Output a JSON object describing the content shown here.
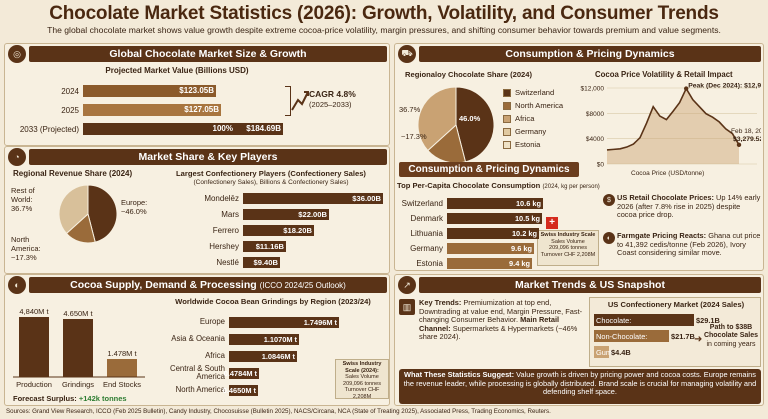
{
  "title": "Chocolate Market Statistics (2026): Growth, Volatility, and Consumer Trends",
  "subtitle": "The global chocolate market shows value growth despite extreme cocoa-price volatility, margin pressures, and shifting consumer behavior towards premium and value segments.",
  "sections": {
    "market_size": "Global Chocolate Market Size & Growth",
    "consumption_pricing": "Consumption & Pricing Dynamics",
    "consumption_pricing_2": "Consumption & Pricing Dynamics",
    "share_players": "Market Share & Key Players",
    "cocoa_supply": "Cocoa Supply, Demand & Processing",
    "cocoa_supply_sub": "(ICCO 2024/25 Outlook)",
    "trends": "Market Trends & US Snapshot"
  },
  "market_value": {
    "title": "Projected Market Value (Billions USD)",
    "cagr": "CAGR 4.8%",
    "cagr_range": "(2025–2033)",
    "final_pct": "100%"
  },
  "regional_share_title": "Regionaloy Chocolate Share (2024)",
  "regional_share_labels": {
    "big": "46.0%",
    "a": "36.7%",
    "b": "~17.3%"
  },
  "revenue_share": {
    "title": "Regional Revenue Share (2024)",
    "row": "Rest of World:",
    "row_val": "36.7%",
    "europe": "Europe:",
    "europe_val": "~46.0%",
    "na": "North America:",
    "na_val": "~17.3%"
  },
  "players": {
    "title": "Largest Confectionery Players (Confectionery Sales)",
    "subtitle": "(Confectionery Sales), Billions & Confectionery Sales)"
  },
  "price_chart": {
    "title": "Cocoa Price Volatility & Retail Impact",
    "peak": "Peak (Dec 2024): $12,906",
    "feb": "Feb 18, 2026:",
    "feb_val": "$3,279.52",
    "xlabel": "Cocoa Price (USD/tonne)"
  },
  "percap": {
    "title": "Top Per-Capita Chocolate Consumption",
    "title_unit": "(2024, kg per person)"
  },
  "swiss_note": [
    "Swiss Industry Scale",
    "Sales Volume",
    "209,096 tonnes",
    "Turnover CHF 2,208M"
  ],
  "swiss_note2": [
    "Swiss Industry",
    "Scale (2024):",
    "Sales Volume",
    "209,096 tonnes",
    "Turnover CHF 2,208M"
  ],
  "retail": {
    "head": "US Retail Chocolate Prices:",
    "body": "Up 14% early 2026 (after 7.8% rise in 2025) despite cocoa price drop.",
    "head2": "Farmgate Pricing Reacts:",
    "body2": "Ghana cut price to 41,392 cedis/tonne (Feb 2026), Ivory Coast considering similar move."
  },
  "supply": {
    "surplus_label": "Forecast Surplus:",
    "surplus_val": "+142k tonnes"
  },
  "grind": {
    "title": "Worldwide Cocoa Bean Grindings by Region (2023/24)"
  },
  "trends": {
    "head": "Key Trends:",
    "body": "Premiumization at top end, Downtrading at value end, Margin Pressure, Fast-changing Consumer Behavior.",
    "head2": "Main Retail Channel:",
    "body2": "Supermarkets & Hypermarkets (~46% share 2024)."
  },
  "us": {
    "title": "US Confectionery Market (2024 Sales)",
    "target": "Path to $38B",
    "target2": "Chocolate Sales",
    "target3": "in coming years"
  },
  "suggest": {
    "head": "What These Statistics Suggest:",
    "body": "Value growth is driven by pricing power and cocoa costs. Europe remains the revenue leader, while processing is globally distributed. Brand scale is crucial for managing volatility and defending shelf space."
  },
  "sources": "Sources: Grand View Research, ICCO (Feb 2025 Bulletin), Candy Industry, Chocosuisse (Bulletin 2025), NACS/Circana, NCA (State of Treating 2025), Associated Press, Trading Economics, Reuters.",
  "colors": {
    "dark": "#5a3317",
    "mid": "#9a6b3a",
    "light": "#c9a273",
    "cream": "#f3ead8"
  },
  "chart_data": [
    {
      "type": "bar",
      "title": "Projected Market Value (Billions USD)",
      "categories": [
        "2024",
        "2025",
        "2033 (Projected)"
      ],
      "values": [
        123.05,
        127.05,
        184.69
      ],
      "labels": [
        "$123.05B",
        "$127.05B",
        "$184.69B"
      ]
    },
    {
      "type": "pie",
      "title": "Regionaloy Chocolate Share (2024)",
      "categories": [
        "Switzerland",
        "North America",
        "Africa",
        "Germany",
        "Estonia"
      ],
      "values": [
        46.0,
        17.3,
        36.7,
        0,
        0
      ]
    },
    {
      "type": "line",
      "title": "Cocoa Price Volatility & Retail Impact",
      "ylabel": "",
      "ylim": [
        0,
        12000
      ],
      "yticks": [
        "$12,000",
        "$8000",
        "$4000",
        "$0"
      ],
      "x": [
        0,
        1,
        2,
        3,
        4,
        5,
        6,
        7,
        8,
        9,
        10,
        11,
        12,
        13,
        14,
        15,
        16,
        17,
        18,
        19,
        20
      ],
      "values": [
        2400,
        2500,
        2600,
        2900,
        3400,
        4500,
        7000,
        9800,
        8200,
        7600,
        9000,
        10500,
        12906,
        11000,
        9800,
        8600,
        8000,
        7200,
        6000,
        5200,
        3279.52
      ]
    },
    {
      "type": "pie",
      "title": "Regional Revenue Share (2024)",
      "categories": [
        "Rest of World",
        "Europe",
        "North America"
      ],
      "values": [
        36.7,
        46.0,
        17.3
      ]
    },
    {
      "type": "bar",
      "title": "Largest Confectionery Players",
      "categories": [
        "Mondelēz",
        "Mars",
        "Ferrero",
        "Hershey",
        "Nestlé"
      ],
      "values": [
        36.0,
        22.0,
        18.2,
        11.16,
        9.4
      ],
      "labels": [
        "$36.00B",
        "$22.00B",
        "$18.20B",
        "$11.16B",
        "$9.40B"
      ]
    },
    {
      "type": "bar",
      "title": "Top Per-Capita Chocolate Consumption",
      "categories": [
        "Switzerland",
        "Denmark",
        "Lithuania",
        "Germany",
        "Estonia"
      ],
      "values": [
        10.6,
        10.5,
        10.2,
        9.6,
        9.4
      ],
      "labels": [
        "10.6 kg",
        "10.5 kg",
        "10.2 kg",
        "9.6 kg",
        "9.4 kg"
      ]
    },
    {
      "type": "bar",
      "title": "Cocoa Supply",
      "categories": [
        "Production",
        "Grindings",
        "End Stocks"
      ],
      "values": [
        4.84,
        4.65,
        1.478
      ],
      "labels": [
        "4,840M t",
        "4.650M t",
        "1.478M t"
      ]
    },
    {
      "type": "bar",
      "title": "Worldwide Cocoa Bean Grindings by Region (2023/24)",
      "categories": [
        "Europe",
        "Asia & Oceania",
        "Africa",
        "Central & South America",
        "North America"
      ],
      "values": [
        1.7496,
        1.107,
        1.0846,
        0.4784,
        0.465
      ],
      "labels": [
        "1.7496M t",
        "1.1070M t",
        "1.0846M t",
        "0.4784M t",
        "0.4650M t"
      ]
    },
    {
      "type": "bar",
      "title": "US Confectionery Market (2024 Sales)",
      "categories": [
        "Chocolate",
        "Non-Chocolate",
        "Gum"
      ],
      "values": [
        29.1,
        21.7,
        4.4
      ],
      "labels": [
        "$29.1B",
        "$21.7B",
        "$4.4B"
      ]
    }
  ]
}
